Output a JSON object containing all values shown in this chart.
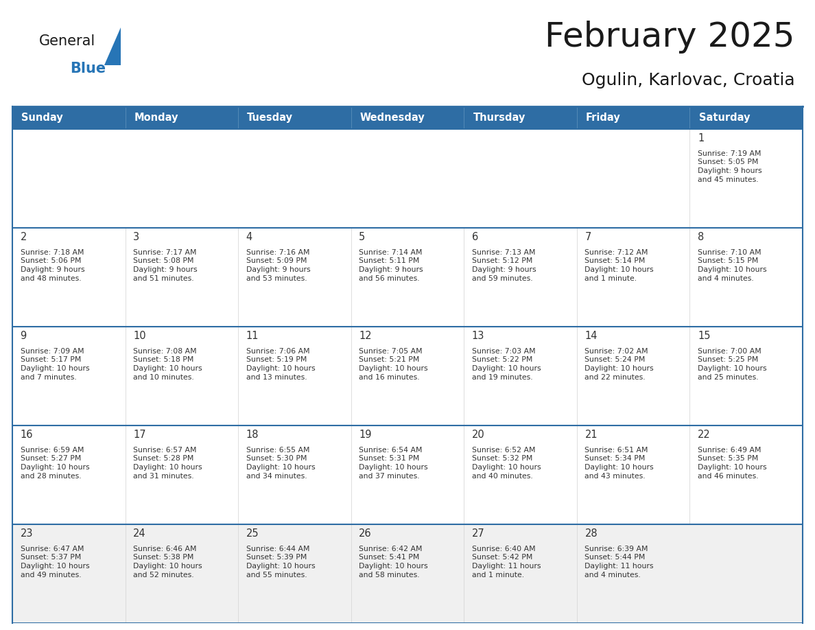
{
  "title": "February 2025",
  "subtitle": "Ogulin, Karlovac, Croatia",
  "header_bg_color": "#2E6DA4",
  "header_text_color": "#FFFFFF",
  "cell_bg_color": "#FFFFFF",
  "cell_alt_bg_color": "#F0F0F0",
  "border_color": "#2E6DA4",
  "separator_color": "#CCCCCC",
  "day_number_color": "#333333",
  "cell_text_color": "#333333",
  "days_of_week": [
    "Sunday",
    "Monday",
    "Tuesday",
    "Wednesday",
    "Thursday",
    "Friday",
    "Saturday"
  ],
  "calendar_data": [
    [
      null,
      null,
      null,
      null,
      null,
      null,
      {
        "day": 1,
        "sunrise": "7:19 AM",
        "sunset": "5:05 PM",
        "daylight": "9 hours\nand 45 minutes."
      }
    ],
    [
      {
        "day": 2,
        "sunrise": "7:18 AM",
        "sunset": "5:06 PM",
        "daylight": "9 hours\nand 48 minutes."
      },
      {
        "day": 3,
        "sunrise": "7:17 AM",
        "sunset": "5:08 PM",
        "daylight": "9 hours\nand 51 minutes."
      },
      {
        "day": 4,
        "sunrise": "7:16 AM",
        "sunset": "5:09 PM",
        "daylight": "9 hours\nand 53 minutes."
      },
      {
        "day": 5,
        "sunrise": "7:14 AM",
        "sunset": "5:11 PM",
        "daylight": "9 hours\nand 56 minutes."
      },
      {
        "day": 6,
        "sunrise": "7:13 AM",
        "sunset": "5:12 PM",
        "daylight": "9 hours\nand 59 minutes."
      },
      {
        "day": 7,
        "sunrise": "7:12 AM",
        "sunset": "5:14 PM",
        "daylight": "10 hours\nand 1 minute."
      },
      {
        "day": 8,
        "sunrise": "7:10 AM",
        "sunset": "5:15 PM",
        "daylight": "10 hours\nand 4 minutes."
      }
    ],
    [
      {
        "day": 9,
        "sunrise": "7:09 AM",
        "sunset": "5:17 PM",
        "daylight": "10 hours\nand 7 minutes."
      },
      {
        "day": 10,
        "sunrise": "7:08 AM",
        "sunset": "5:18 PM",
        "daylight": "10 hours\nand 10 minutes."
      },
      {
        "day": 11,
        "sunrise": "7:06 AM",
        "sunset": "5:19 PM",
        "daylight": "10 hours\nand 13 minutes."
      },
      {
        "day": 12,
        "sunrise": "7:05 AM",
        "sunset": "5:21 PM",
        "daylight": "10 hours\nand 16 minutes."
      },
      {
        "day": 13,
        "sunrise": "7:03 AM",
        "sunset": "5:22 PM",
        "daylight": "10 hours\nand 19 minutes."
      },
      {
        "day": 14,
        "sunrise": "7:02 AM",
        "sunset": "5:24 PM",
        "daylight": "10 hours\nand 22 minutes."
      },
      {
        "day": 15,
        "sunrise": "7:00 AM",
        "sunset": "5:25 PM",
        "daylight": "10 hours\nand 25 minutes."
      }
    ],
    [
      {
        "day": 16,
        "sunrise": "6:59 AM",
        "sunset": "5:27 PM",
        "daylight": "10 hours\nand 28 minutes."
      },
      {
        "day": 17,
        "sunrise": "6:57 AM",
        "sunset": "5:28 PM",
        "daylight": "10 hours\nand 31 minutes."
      },
      {
        "day": 18,
        "sunrise": "6:55 AM",
        "sunset": "5:30 PM",
        "daylight": "10 hours\nand 34 minutes."
      },
      {
        "day": 19,
        "sunrise": "6:54 AM",
        "sunset": "5:31 PM",
        "daylight": "10 hours\nand 37 minutes."
      },
      {
        "day": 20,
        "sunrise": "6:52 AM",
        "sunset": "5:32 PM",
        "daylight": "10 hours\nand 40 minutes."
      },
      {
        "day": 21,
        "sunrise": "6:51 AM",
        "sunset": "5:34 PM",
        "daylight": "10 hours\nand 43 minutes."
      },
      {
        "day": 22,
        "sunrise": "6:49 AM",
        "sunset": "5:35 PM",
        "daylight": "10 hours\nand 46 minutes."
      }
    ],
    [
      {
        "day": 23,
        "sunrise": "6:47 AM",
        "sunset": "5:37 PM",
        "daylight": "10 hours\nand 49 minutes."
      },
      {
        "day": 24,
        "sunrise": "6:46 AM",
        "sunset": "5:38 PM",
        "daylight": "10 hours\nand 52 minutes."
      },
      {
        "day": 25,
        "sunrise": "6:44 AM",
        "sunset": "5:39 PM",
        "daylight": "10 hours\nand 55 minutes."
      },
      {
        "day": 26,
        "sunrise": "6:42 AM",
        "sunset": "5:41 PM",
        "daylight": "10 hours\nand 58 minutes."
      },
      {
        "day": 27,
        "sunrise": "6:40 AM",
        "sunset": "5:42 PM",
        "daylight": "11 hours\nand 1 minute."
      },
      {
        "day": 28,
        "sunrise": "6:39 AM",
        "sunset": "5:44 PM",
        "daylight": "11 hours\nand 4 minutes."
      },
      null
    ]
  ],
  "logo_text_general": "General",
  "logo_text_blue": "Blue",
  "logo_color_general": "#1a1a1a",
  "logo_color_blue": "#2775b6",
  "logo_triangle_color": "#2775b6",
  "title_color": "#1a1a1a",
  "subtitle_color": "#1a1a1a"
}
